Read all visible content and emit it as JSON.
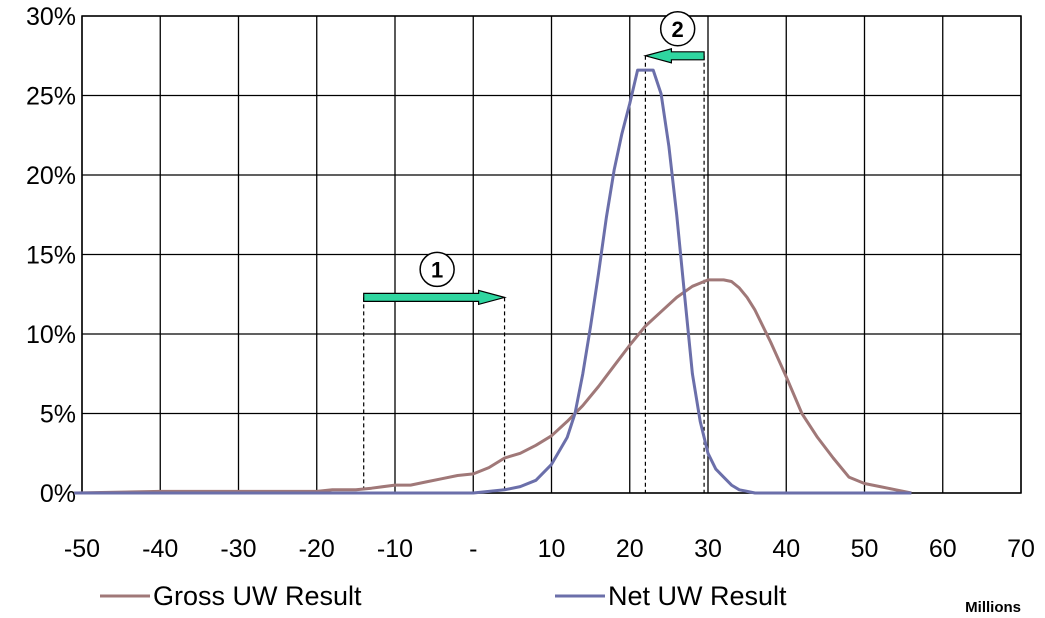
{
  "chart_data": {
    "type": "line",
    "x_unit_label": "Millions",
    "xlim": [
      -50,
      70
    ],
    "ylim": [
      0,
      30
    ],
    "x_ticks": [
      "-50",
      "-40",
      "-30",
      "-20",
      "-10",
      "-",
      "10",
      "20",
      "30",
      "40",
      "50",
      "60",
      "70"
    ],
    "y_ticks": [
      "0%",
      "5%",
      "10%",
      "15%",
      "20%",
      "25%",
      "30%"
    ],
    "grid": true,
    "legend_position": "bottom",
    "series": [
      {
        "name": "Gross UW Result",
        "color": "#a07878",
        "x": [
          -51,
          -40,
          -30,
          -20,
          -18,
          -15,
          -13,
          -10,
          -8,
          -6,
          -4,
          -2,
          0,
          2,
          4,
          6,
          8,
          10,
          12,
          14,
          16,
          18,
          20,
          22,
          24,
          26,
          28,
          29,
          30,
          31,
          32,
          33,
          34,
          35,
          36,
          38,
          40,
          42,
          44,
          46,
          48,
          50,
          52,
          54,
          56
        ],
        "y": [
          0,
          0.1,
          0.1,
          0.1,
          0.2,
          0.2,
          0.3,
          0.5,
          0.5,
          0.7,
          0.9,
          1.1,
          1.2,
          1.6,
          2.2,
          2.5,
          3.0,
          3.6,
          4.5,
          5.5,
          6.7,
          8.0,
          9.3,
          10.5,
          11.4,
          12.3,
          13.0,
          13.2,
          13.4,
          13.4,
          13.4,
          13.3,
          12.9,
          12.3,
          11.5,
          9.5,
          7.3,
          5.0,
          3.5,
          2.2,
          1.0,
          0.6,
          0.4,
          0.2,
          0
        ]
      },
      {
        "name": "Net UW Result",
        "color": "#6b6faa",
        "x": [
          -51,
          0,
          4,
          6,
          8,
          10,
          12,
          13,
          14,
          15,
          16,
          17,
          18,
          19,
          20,
          21,
          22,
          23,
          24,
          25,
          26,
          27,
          28,
          29,
          30,
          31,
          32,
          33,
          34,
          35,
          36,
          40,
          56
        ],
        "y": [
          0,
          0,
          0.2,
          0.4,
          0.8,
          1.8,
          3.5,
          5.0,
          7.5,
          10.5,
          13.8,
          17.3,
          20.3,
          22.6,
          24.5,
          26.6,
          26.6,
          26.6,
          25.1,
          21.8,
          17.5,
          12.5,
          7.5,
          4.5,
          2.5,
          1.5,
          1.0,
          0.5,
          0.2,
          0.1,
          0,
          0,
          0
        ]
      }
    ],
    "annotations": [
      {
        "label": "1",
        "direction": "right",
        "from_x": -14,
        "to_x": 4,
        "y": 12.3,
        "guide_lines_x": [
          -14,
          4
        ]
      },
      {
        "label": "2",
        "direction": "left",
        "from_x": 29.5,
        "to_x": 22,
        "y": 27.5,
        "guide_lines_x": [
          22,
          29.5
        ]
      }
    ]
  }
}
